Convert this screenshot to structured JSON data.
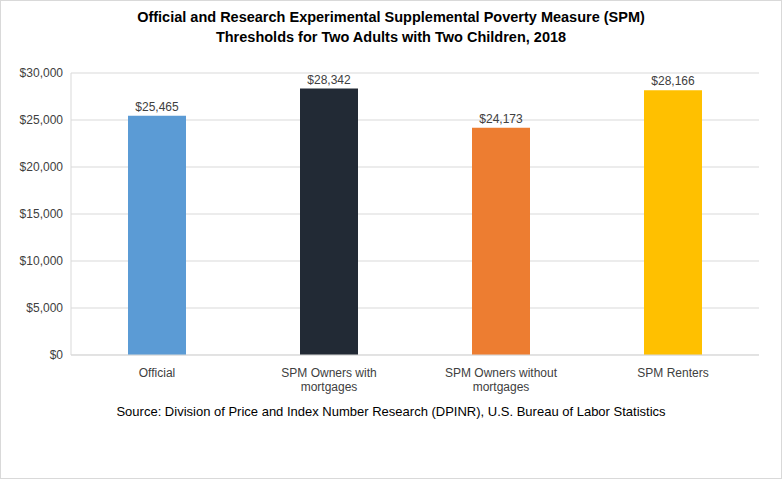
{
  "chart_data": {
    "type": "bar",
    "title": "Official and Research Experimental Supplemental Poverty Measure (SPM)\nThresholds for Two Adults with Two Children, 2018",
    "categories": [
      "Official",
      "SPM Owners with mortgages",
      "SPM Owners without mortgages",
      "SPM Renters"
    ],
    "values": [
      25465,
      28342,
      24173,
      28166
    ],
    "value_labels": [
      "$25,465",
      "$28,342",
      "$24,173",
      "$28,166"
    ],
    "colors": [
      "#5b9bd5",
      "#222a35",
      "#ed7d31",
      "#ffc000"
    ],
    "ylim": [
      0,
      30000
    ],
    "yticks": [
      {
        "value": 0,
        "label": "$0"
      },
      {
        "value": 5000,
        "label": "$5,000"
      },
      {
        "value": 10000,
        "label": "$10,000"
      },
      {
        "value": 15000,
        "label": "$15,000"
      },
      {
        "value": 20000,
        "label": "$20,000"
      },
      {
        "value": 25000,
        "label": "$25,000"
      },
      {
        "value": 30000,
        "label": "$30,000"
      }
    ],
    "grid": true,
    "data_labels": true,
    "annotations": [
      "Source: Division of Price and Index Number Research (DPINR), U.S. Bureau of Labor Statistics"
    ]
  }
}
